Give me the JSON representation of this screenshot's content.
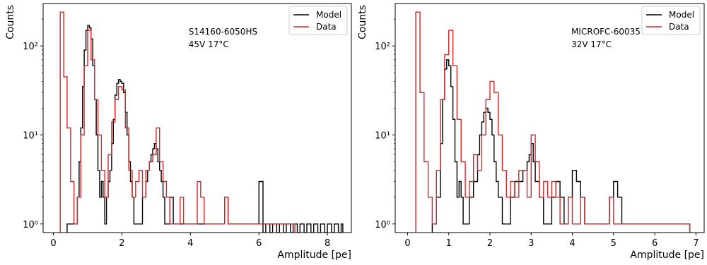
{
  "chart_data": [
    {
      "type": "line",
      "xlabel": "Amplitude [pe]",
      "ylabel": "Counts",
      "yscale": "log",
      "xlim": [
        -0.3,
        8.7
      ],
      "ylim": [
        0.8,
        300
      ],
      "xticks": [
        "0",
        "2",
        "4",
        "6",
        "8"
      ],
      "xtick_values": [
        0,
        2,
        4,
        6,
        8
      ],
      "yticks": [
        "10⁰",
        "10¹",
        "10²"
      ],
      "ytick_values": [
        1,
        10,
        100
      ],
      "annotations": [
        "S14160-6050HS",
        "45V 17°C"
      ],
      "legend": {
        "placement": "top-right"
      },
      "series": [
        {
          "name": "Model",
          "color": "#000000",
          "x": [
            0.4,
            0.5,
            0.6,
            0.7,
            0.75,
            0.8,
            0.85,
            0.9,
            0.95,
            1.0,
            1.05,
            1.1,
            1.15,
            1.2,
            1.25,
            1.3,
            1.35,
            1.4,
            1.45,
            1.5,
            1.55,
            1.6,
            1.65,
            1.7,
            1.75,
            1.8,
            1.85,
            1.9,
            1.95,
            2.0,
            2.05,
            2.1,
            2.15,
            2.2,
            2.25,
            2.3,
            2.35,
            2.4,
            2.5,
            2.6,
            2.7,
            2.75,
            2.8,
            2.85,
            2.9,
            2.95,
            3.0,
            3.05,
            3.1,
            3.15,
            3.2,
            3.25,
            3.3,
            3.35,
            3.4,
            3.5,
            3.6,
            3.7,
            3.8,
            3.9,
            4.0,
            4.1,
            4.2,
            4.3,
            4.4,
            4.5,
            4.6,
            4.7,
            4.8,
            4.9,
            5.0,
            5.1,
            5.2,
            5.3,
            5.4,
            5.5,
            5.6,
            5.7,
            5.8,
            5.9,
            6.0,
            6.2,
            6.4,
            6.6,
            6.8,
            7.0,
            7.2,
            7.4,
            7.6,
            7.8,
            8.0,
            8.2,
            8.4
          ],
          "y": [
            1.0,
            1.0,
            1.0,
            2.0,
            5.0,
            12.0,
            35.0,
            90.0,
            150.0,
            170.0,
            160.0,
            120.0,
            60.0,
            25.0,
            10.0,
            4.0,
            2.0,
            3.0,
            2.0,
            1.0,
            2.0,
            3.0,
            4.0,
            8.0,
            15.0,
            28.0,
            38.0,
            42.0,
            40.0,
            38.0,
            30.0,
            18.0,
            10.0,
            5.0,
            3.0,
            2.0,
            1.0,
            1.0,
            1.0,
            2.0,
            3.0,
            4.0,
            5.0,
            6.0,
            7.0,
            8.0,
            7.0,
            5.0,
            4.0,
            3.0,
            2.0,
            1.0,
            1.0,
            1.0,
            2.0,
            1.0,
            1.0,
            1.0,
            1.0,
            1.0,
            1.0,
            1.0,
            1.0,
            1.0,
            1.0,
            1.0,
            1.0,
            1.0,
            1.0,
            1.0,
            2.0,
            1.0,
            1.0,
            1.0,
            1.0,
            1.0,
            1.0,
            1.0,
            1.0,
            1.0,
            3.0,
            1.0,
            1.0,
            1.0,
            1.0,
            1.0,
            1.0,
            1.0,
            1.0,
            1.0,
            1.0,
            1.0,
            1.0
          ]
        },
        {
          "name": "Data",
          "color": "#d62728",
          "x": [
            0.2,
            0.3,
            0.4,
            0.5,
            0.6,
            0.7,
            0.8,
            0.9,
            1.0,
            1.1,
            1.2,
            1.3,
            1.4,
            1.5,
            1.6,
            1.7,
            1.8,
            1.9,
            2.0,
            2.1,
            2.2,
            2.3,
            2.4,
            2.5,
            2.6,
            2.7,
            2.8,
            2.9,
            3.0,
            3.1,
            3.2,
            3.3,
            3.4,
            3.5,
            3.6,
            3.7,
            3.8,
            3.9,
            4.0,
            4.1,
            4.2,
            4.3,
            4.4,
            4.5,
            4.6,
            4.7,
            4.8,
            4.9,
            5.0,
            5.1,
            5.2,
            5.3,
            5.4,
            5.5,
            5.6,
            5.7,
            5.8,
            5.9,
            6.0,
            6.1,
            6.2,
            6.3,
            6.4,
            6.5,
            6.6,
            6.7,
            6.8,
            6.9,
            7.0
          ],
          "y": [
            240.0,
            45.0,
            12.0,
            3.0,
            1.0,
            2.0,
            10.0,
            60.0,
            150.0,
            70.0,
            25.0,
            10.0,
            4.0,
            2.0,
            6.0,
            14.0,
            25.0,
            35.0,
            32.0,
            12.0,
            4.0,
            2.0,
            3.0,
            4.0,
            2.0,
            4.0,
            5.0,
            6.0,
            12.0,
            5.0,
            3.0,
            2.0,
            1.0,
            1.0,
            1.0,
            2.0,
            1.0,
            1.0,
            1.0,
            1.0,
            3.0,
            2.0,
            1.0,
            1.0,
            1.0,
            1.0,
            1.0,
            1.0,
            2.0,
            1.0,
            1.0,
            1.0,
            1.0,
            1.0,
            1.0,
            1.0,
            1.0,
            1.0,
            1.0,
            1.0,
            1.0,
            1.0,
            1.0,
            1.0,
            1.0,
            1.0,
            1.0,
            1.0,
            1.0
          ]
        }
      ]
    },
    {
      "type": "line",
      "xlabel": "Amplitude [pe]",
      "ylabel": "Counts",
      "yscale": "log",
      "xlim": [
        -0.3,
        7.2
      ],
      "ylim": [
        0.8,
        300
      ],
      "xticks": [
        "0",
        "1",
        "2",
        "3",
        "4",
        "5",
        "6",
        "7"
      ],
      "xtick_values": [
        0,
        1,
        2,
        3,
        4,
        5,
        6,
        7
      ],
      "yticks": [
        "10⁰",
        "10¹",
        "10²"
      ],
      "ytick_values": [
        1,
        10,
        100
      ],
      "annotations": [
        "MICROFC-60035",
        "32V 17°C"
      ],
      "legend": {
        "placement": "top-right"
      },
      "series": [
        {
          "name": "Model",
          "color": "#000000",
          "x": [
            0.6,
            0.7,
            0.8,
            0.85,
            0.9,
            0.95,
            1.0,
            1.05,
            1.1,
            1.15,
            1.2,
            1.25,
            1.3,
            1.35,
            1.4,
            1.5,
            1.6,
            1.7,
            1.75,
            1.8,
            1.85,
            1.9,
            1.95,
            2.0,
            2.05,
            2.1,
            2.15,
            2.2,
            2.3,
            2.4,
            2.5,
            2.6,
            2.7,
            2.8,
            2.9,
            2.95,
            3.0,
            3.05,
            3.1,
            3.2,
            3.3,
            3.4,
            3.5,
            3.6,
            3.7,
            3.8,
            3.9,
            4.0,
            4.1,
            4.2,
            4.3,
            4.4,
            4.5,
            4.6,
            4.7,
            4.8,
            4.9,
            5.0,
            5.1,
            5.2,
            5.3,
            5.4,
            5.5,
            5.6,
            5.7,
            5.8,
            5.9,
            6.0,
            6.1,
            6.2,
            6.3,
            6.4,
            6.5,
            6.6,
            6.7,
            6.8
          ],
          "y": [
            1.0,
            2.0,
            8.0,
            25.0,
            55.0,
            70.0,
            60.0,
            35.0,
            15.0,
            5.0,
            2.0,
            3.0,
            2.0,
            1.0,
            1.0,
            2.0,
            3.0,
            6.0,
            10.0,
            14.0,
            18.0,
            20.0,
            18.0,
            15.0,
            10.0,
            5.0,
            3.0,
            2.0,
            1.0,
            1.0,
            2.0,
            3.0,
            3.0,
            4.0,
            5.0,
            6.0,
            8.0,
            5.0,
            3.0,
            2.0,
            1.0,
            1.0,
            2.0,
            3.0,
            2.0,
            1.0,
            2.0,
            4.0,
            3.0,
            2.0,
            1.0,
            1.0,
            1.0,
            1.0,
            1.0,
            1.0,
            2.0,
            3.0,
            2.0,
            1.0,
            1.0,
            1.0,
            1.0,
            1.0,
            1.0,
            1.0,
            1.0,
            1.0,
            1.0,
            1.0,
            1.0,
            1.0,
            1.0,
            1.0,
            1.0,
            1.0
          ]
        },
        {
          "name": "Data",
          "color": "#d62728",
          "x": [
            0.2,
            0.3,
            0.4,
            0.5,
            0.6,
            0.7,
            0.8,
            0.9,
            1.0,
            1.1,
            1.2,
            1.3,
            1.4,
            1.5,
            1.6,
            1.7,
            1.8,
            1.9,
            2.0,
            2.1,
            2.2,
            2.3,
            2.4,
            2.5,
            2.6,
            2.7,
            2.8,
            2.9,
            3.0,
            3.1,
            3.2,
            3.3,
            3.4,
            3.5,
            3.6,
            3.7,
            3.8,
            3.9,
            4.0,
            4.1,
            4.2,
            4.3,
            4.4,
            4.5,
            4.6,
            4.7,
            4.8,
            4.9,
            5.0,
            5.1,
            5.2,
            5.3,
            5.4,
            5.5,
            5.6,
            5.7,
            5.8,
            5.9,
            6.0,
            6.1,
            6.2,
            6.3,
            6.4,
            6.5,
            6.6,
            6.7,
            6.8
          ],
          "y": [
            240.0,
            30.0,
            5.0,
            2.0,
            1.0,
            4.0,
            25.0,
            80.0,
            150.0,
            60.0,
            15.0,
            5.0,
            2.0,
            3.0,
            6.0,
            4.0,
            10.0,
            25.0,
            40.0,
            30.0,
            10.0,
            4.0,
            2.0,
            3.0,
            2.0,
            4.0,
            4.0,
            2.0,
            10.0,
            5.0,
            2.0,
            3.0,
            2.0,
            3.0,
            2.0,
            1.0,
            1.0,
            2.0,
            1.0,
            1.0,
            2.0,
            1.0,
            1.0,
            1.0,
            1.0,
            1.0,
            1.0,
            2.0,
            1.0,
            1.0,
            1.0,
            1.0,
            1.0,
            1.0,
            1.0,
            1.0,
            1.0,
            1.0,
            1.0,
            1.0,
            1.0,
            1.0,
            1.0,
            1.0,
            1.0,
            1.0,
            1.0
          ]
        }
      ]
    }
  ]
}
